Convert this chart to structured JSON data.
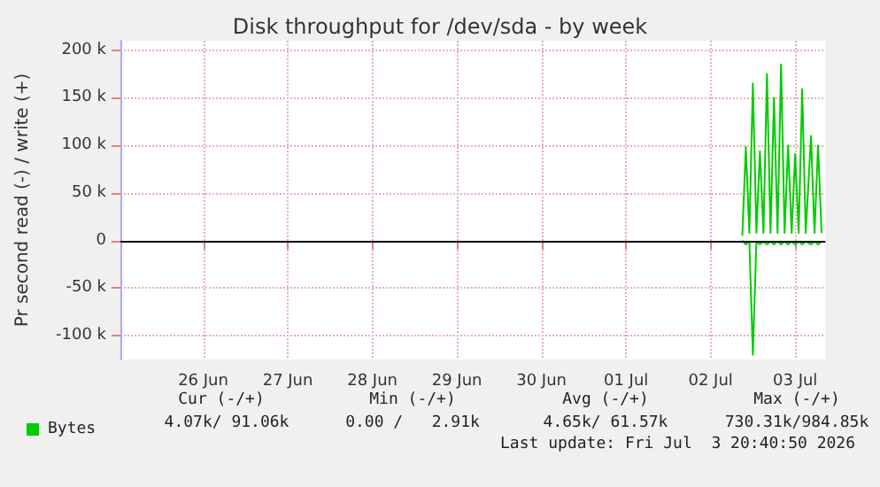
{
  "chart_data": {
    "type": "line",
    "title": "Disk throughput for /dev/sda - by week",
    "ylabel": "Pr second read (-) / write (+)",
    "series": [
      {
        "name": "Bytes",
        "color": "#00cc00",
        "x": [
          "2026-07-02T09:00",
          "2026-07-02T10:00",
          "2026-07-02T11:00",
          "2026-07-02T12:00",
          "2026-07-02T13:00",
          "2026-07-02T14:00",
          "2026-07-02T15:00",
          "2026-07-02T16:00",
          "2026-07-02T17:00",
          "2026-07-02T18:00",
          "2026-07-02T19:00",
          "2026-07-02T20:00",
          "2026-07-02T21:00",
          "2026-07-02T22:00",
          "2026-07-02T23:00",
          "2026-07-03T00:00",
          "2026-07-03T01:00",
          "2026-07-03T02:00",
          "2026-07-03T03:00",
          "2026-07-03T04:30",
          "2026-07-03T05:30",
          "2026-07-03T06:30",
          "2026-07-03T07:30"
        ],
        "values": [
          5000,
          98000,
          8000,
          165000,
          8000,
          94000,
          8000,
          175000,
          8000,
          150000,
          8000,
          185000,
          8000,
          100000,
          8000,
          91000,
          8000,
          159000,
          8000,
          110000,
          8000,
          100000,
          8000
        ]
      },
      {
        "color": "#00cc00",
        "x": [
          "2026-07-02T09:00",
          "2026-07-02T10:00",
          "2026-07-02T11:00",
          "2026-07-02T12:00",
          "2026-07-02T13:00",
          "2026-07-02T14:00",
          "2026-07-02T15:00",
          "2026-07-02T16:00",
          "2026-07-02T17:00",
          "2026-07-02T18:00",
          "2026-07-02T19:00",
          "2026-07-02T20:00",
          "2026-07-02T21:00",
          "2026-07-02T22:00",
          "2026-07-02T23:00",
          "2026-07-03T00:00",
          "2026-07-03T01:00",
          "2026-07-03T02:00",
          "2026-07-03T03:00",
          "2026-07-03T04:30",
          "2026-07-03T05:30",
          "2026-07-03T06:30",
          "2026-07-03T07:30"
        ],
        "values": [
          0,
          -4000,
          -1000,
          -120000,
          -1000,
          -4000,
          -1000,
          -4000,
          -1000,
          -4000,
          -1000,
          -4000,
          -1000,
          -4000,
          -1000,
          -4000,
          -1000,
          -4000,
          -1000,
          -4000,
          -1000,
          -4000,
          -1000
        ]
      }
    ],
    "xlim": [
      "2026-06-25T00:30",
      "2026-07-03T08:30"
    ],
    "xticks": [
      {
        "value": "2026-06-26",
        "label": "26 Jun"
      },
      {
        "value": "2026-06-27",
        "label": "27 Jun"
      },
      {
        "value": "2026-06-28",
        "label": "28 Jun"
      },
      {
        "value": "2026-06-29",
        "label": "29 Jun"
      },
      {
        "value": "2026-06-30",
        "label": "30 Jun"
      },
      {
        "value": "2026-07-01",
        "label": "01 Jul"
      },
      {
        "value": "2026-07-02",
        "label": "02 Jul"
      },
      {
        "value": "2026-07-03",
        "label": "03 Jul"
      }
    ],
    "ylim": [
      -125000,
      210000
    ],
    "yticks": [
      {
        "value": -100000,
        "label": "-100 k"
      },
      {
        "value": -50000,
        "label": "-50 k"
      },
      0,
      {
        "value": 50000,
        "label": "50 k"
      },
      {
        "value": 100000,
        "label": "100 k"
      },
      {
        "value": 150000,
        "label": "150 k"
      },
      {
        "value": 200000,
        "label": "200 k"
      }
    ],
    "ref_lines": [
      {
        "axis": "y",
        "value": 0,
        "color": "#000000"
      }
    ],
    "grid": true,
    "legend": "bottom left",
    "annotations": [
      "Cur (-/+)",
      "Min (-/+)",
      "Avg (-/+)",
      "Max (-/+)",
      "4.07k/ 91.06k",
      "0.00 /   2.91k",
      "4.65k/ 61.57k",
      "730.31k/984.85k",
      "Last update: Fri Jul  3 20:40:50 2026"
    ]
  }
}
